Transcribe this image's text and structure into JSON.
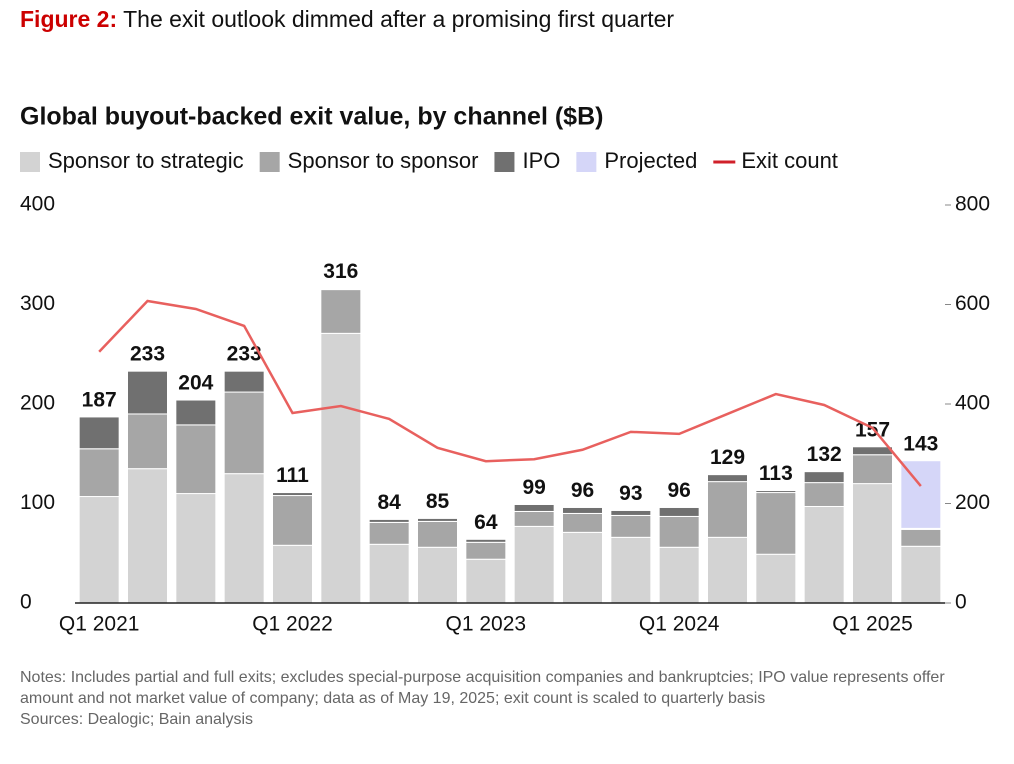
{
  "figure": {
    "label": "Figure 2:",
    "title": "The exit outlook dimmed after a promising first quarter"
  },
  "chart_data": {
    "type": "bar",
    "stacked": true,
    "title": "Global buyout-backed exit value, by channel ($B)",
    "categories": [
      "Q1 2021",
      null,
      null,
      null,
      "Q1 2022",
      null,
      null,
      null,
      "Q1 2023",
      null,
      null,
      null,
      "Q1 2024",
      null,
      null,
      null,
      "Q1 2025",
      null
    ],
    "series": [
      {
        "name": "Sponsor to strategic",
        "color": "#d3d3d3",
        "values": [
          107,
          135,
          110,
          130,
          58,
          271,
          59,
          56,
          44,
          77,
          71,
          66,
          56,
          66,
          49,
          97,
          120,
          57
        ]
      },
      {
        "name": "Sponsor to sponsor",
        "color": "#a6a6a6",
        "values": [
          48,
          55,
          69,
          82,
          50,
          44,
          22,
          26,
          17,
          15,
          19,
          22,
          31,
          56,
          62,
          24,
          29,
          17
        ]
      },
      {
        "name": "IPO",
        "color": "#707070",
        "values": [
          32,
          43,
          25,
          21,
          3,
          1,
          3,
          3,
          3,
          7,
          6,
          5,
          9,
          7,
          2,
          11,
          8,
          1
        ]
      },
      {
        "name": "Projected",
        "color": "#d5d6f8",
        "values": [
          null,
          null,
          null,
          null,
          null,
          null,
          null,
          null,
          null,
          null,
          null,
          null,
          null,
          null,
          null,
          null,
          null,
          68
        ]
      },
      {
        "name": "Exit count",
        "type": "line",
        "axis": "y2",
        "color": "#e8605e",
        "legend_color": "#d0202a",
        "values": [
          505,
          607,
          591,
          557,
          382,
          396,
          370,
          312,
          285,
          289,
          308,
          344,
          340,
          380,
          420,
          398,
          352,
          235
        ]
      }
    ],
    "totals": [
      187,
      233,
      204,
      233,
      111,
      316,
      84,
      85,
      64,
      99,
      96,
      93,
      96,
      129,
      113,
      132,
      157,
      143
    ],
    "ylim": [
      0,
      400
    ],
    "yticks": [
      0,
      100,
      200,
      300,
      400
    ],
    "y2lim": [
      0,
      800
    ],
    "y2ticks": [
      0,
      200,
      400,
      600,
      800
    ],
    "grid": false,
    "legend": "top"
  },
  "notes": "Notes: Includes partial and full exits; excludes special-purpose acquisition companies and bankruptcies; IPO value represents offer amount and not market value of company; data as of May 19, 2025; exit count is scaled to quarterly basis",
  "sources": "Sources: Dealogic; Bain analysis"
}
